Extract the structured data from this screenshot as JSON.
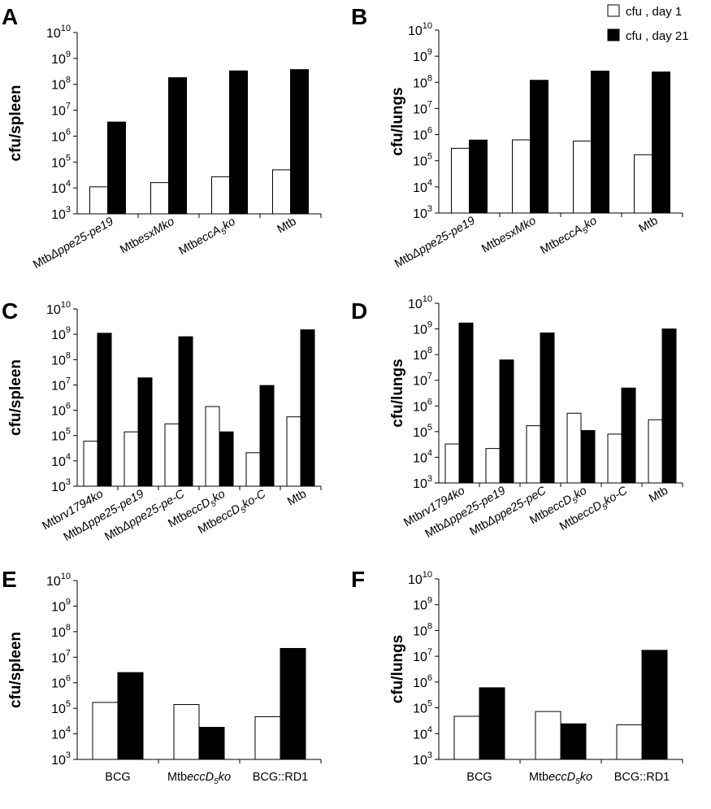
{
  "legend": {
    "items": [
      {
        "label": "cfu , day 1",
        "color": "#ffffff"
      },
      {
        "label": "cfu , day 21",
        "color": "#000000"
      }
    ],
    "placement": "top-right"
  },
  "colors": {
    "day1": "#ffffff",
    "day21": "#000000",
    "outline": "#000000"
  },
  "chart_data": [
    {
      "panel": "A",
      "type": "bar",
      "ylabel": "cfu/spleen",
      "yscale": "log",
      "ylim": [
        1000,
        10000000000
      ],
      "yticks": [
        "10^3",
        "10^4",
        "10^5",
        "10^6",
        "10^7",
        "10^8",
        "10^9",
        "10^10"
      ],
      "categories": [
        "MtbΔppe25-pe19",
        "MtbesxMko",
        "MtbeccA5ko",
        "Mtb"
      ],
      "series": [
        {
          "name": "cfu , day 1",
          "values": [
            11000,
            16000,
            27000,
            50000
          ]
        },
        {
          "name": "cfu , day 21",
          "values": [
            3500000,
            180000000,
            330000000,
            370000000
          ]
        }
      ]
    },
    {
      "panel": "B",
      "type": "bar",
      "ylabel": "cfu/lungs",
      "yscale": "log",
      "ylim": [
        1000,
        10000000000
      ],
      "yticks": [
        "10^3",
        "10^4",
        "10^5",
        "10^6",
        "10^7",
        "10^8",
        "10^9",
        "10^10"
      ],
      "categories": [
        "MtbΔppe25-pe19",
        "MtbesxMko",
        "MtbeccA5ko",
        "Mtb"
      ],
      "series": [
        {
          "name": "cfu , day 1",
          "values": [
            300000,
            630000,
            570000,
            170000
          ]
        },
        {
          "name": "cfu , day 21",
          "values": [
            620000,
            120000000,
            270000000,
            250000000
          ]
        }
      ]
    },
    {
      "panel": "C",
      "type": "bar",
      "ylabel": "cfu/spleen",
      "yscale": "log",
      "ylim": [
        1000,
        10000000000
      ],
      "yticks": [
        "10^3",
        "10^4",
        "10^5",
        "10^6",
        "10^7",
        "10^8",
        "10^9",
        "10^10"
      ],
      "categories": [
        "Mtbrv1794ko",
        "MtbΔppe25-pe19",
        "MtbΔppe25-pe-C",
        "MtbeccD5ko",
        "MtbeccD5ko-C",
        "Mtb"
      ],
      "series": [
        {
          "name": "cfu , day 1",
          "values": [
            60000,
            140000,
            290000,
            1400000,
            21000,
            550000
          ]
        },
        {
          "name": "cfu , day 21",
          "values": [
            1100000000,
            19000000,
            800000000,
            140000,
            9500000,
            1500000000
          ]
        }
      ]
    },
    {
      "panel": "D",
      "type": "bar",
      "ylabel": "cfu/lungs",
      "yscale": "log",
      "ylim": [
        1000,
        10000000000
      ],
      "yticks": [
        "10^3",
        "10^4",
        "10^5",
        "10^6",
        "10^7",
        "10^8",
        "10^9",
        "10^10"
      ],
      "categories": [
        "Mtbrv1794ko",
        "MtbΔppe25-pe19",
        "MtbΔppe25-peC",
        "MtbeccD5ko",
        "MtbeccD5ko-C",
        "Mtb"
      ],
      "series": [
        {
          "name": "cfu , day 1",
          "values": [
            33000,
            22000,
            170000,
            520000,
            80000,
            290000
          ]
        },
        {
          "name": "cfu , day 21",
          "values": [
            1700000000,
            62000000,
            700000000,
            110000,
            5000000,
            1000000000
          ]
        }
      ]
    },
    {
      "panel": "E",
      "type": "bar",
      "ylabel": "cfu/spleen",
      "yscale": "log",
      "ylim": [
        1000,
        10000000000
      ],
      "yticks": [
        "10^3",
        "10^4",
        "10^5",
        "10^6",
        "10^7",
        "10^8",
        "10^9",
        "10^10"
      ],
      "categories": [
        "BCG",
        "MtbeccD5ko",
        "BCG::RD1"
      ],
      "series": [
        {
          "name": "cfu , day 1",
          "values": [
            170000,
            140000,
            47000
          ]
        },
        {
          "name": "cfu , day 21",
          "values": [
            2500000,
            18000,
            22000000
          ]
        }
      ]
    },
    {
      "panel": "F",
      "type": "bar",
      "ylabel": "cfu/lungs",
      "yscale": "log",
      "ylim": [
        1000,
        10000000000
      ],
      "yticks": [
        "10^3",
        "10^4",
        "10^5",
        "10^6",
        "10^7",
        "10^8",
        "10^9",
        "10^10"
      ],
      "categories": [
        "BCG",
        "MtbeccD5ko",
        "BCG::RD1"
      ],
      "series": [
        {
          "name": "cfu , day 1",
          "values": [
            47000,
            72000,
            22000
          ]
        },
        {
          "name": "cfu , day 21",
          "values": [
            600000,
            24000,
            17000000
          ]
        }
      ]
    }
  ]
}
